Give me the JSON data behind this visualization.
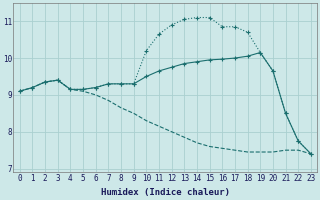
{
  "xlabel": "Humidex (Indice chaleur)",
  "bg_color": "#cde8e8",
  "grid_color": "#aad0d0",
  "line_color": "#1a6e6e",
  "xlim": [
    -0.5,
    23.5
  ],
  "ylim": [
    6.9,
    11.5
  ],
  "yticks": [
    7,
    8,
    9,
    10,
    11
  ],
  "xticks": [
    0,
    1,
    2,
    3,
    4,
    5,
    6,
    7,
    8,
    9,
    10,
    11,
    12,
    13,
    14,
    15,
    16,
    17,
    18,
    19,
    20,
    21,
    22,
    23
  ],
  "curve1_x": [
    0,
    1,
    2,
    3,
    4,
    5,
    6,
    7,
    8,
    9,
    10,
    11,
    12,
    13,
    14,
    15,
    16,
    17,
    18,
    19,
    20,
    21,
    22,
    23
  ],
  "curve1_y": [
    9.1,
    9.2,
    9.35,
    9.4,
    9.15,
    9.15,
    9.2,
    9.3,
    9.3,
    9.3,
    10.2,
    10.65,
    10.9,
    11.05,
    11.1,
    11.1,
    10.85,
    10.85,
    10.7,
    10.15,
    9.65,
    8.5,
    7.75,
    7.4
  ],
  "curve2_x": [
    0,
    1,
    2,
    3,
    4,
    5,
    6,
    7,
    8,
    9,
    10,
    11,
    12,
    13,
    14,
    15,
    16,
    17,
    18,
    19,
    20,
    21,
    22,
    23
  ],
  "curve2_y": [
    9.1,
    9.2,
    9.35,
    9.4,
    9.15,
    9.15,
    9.2,
    9.3,
    9.3,
    9.3,
    9.5,
    9.65,
    9.75,
    9.85,
    9.9,
    9.95,
    9.97,
    10.0,
    10.05,
    10.15,
    9.65,
    8.5,
    7.75,
    7.4
  ],
  "curve3_x": [
    0,
    1,
    2,
    3,
    4,
    5,
    6,
    7,
    8,
    9,
    10,
    11,
    12,
    13,
    14,
    15,
    16,
    17,
    18,
    19,
    20,
    21,
    22,
    23
  ],
  "curve3_y": [
    9.1,
    9.2,
    9.35,
    9.4,
    9.15,
    9.1,
    9.0,
    8.85,
    8.65,
    8.5,
    8.3,
    8.15,
    8.0,
    7.85,
    7.7,
    7.6,
    7.55,
    7.5,
    7.45,
    7.45,
    7.45,
    7.5,
    7.5,
    7.4
  ]
}
